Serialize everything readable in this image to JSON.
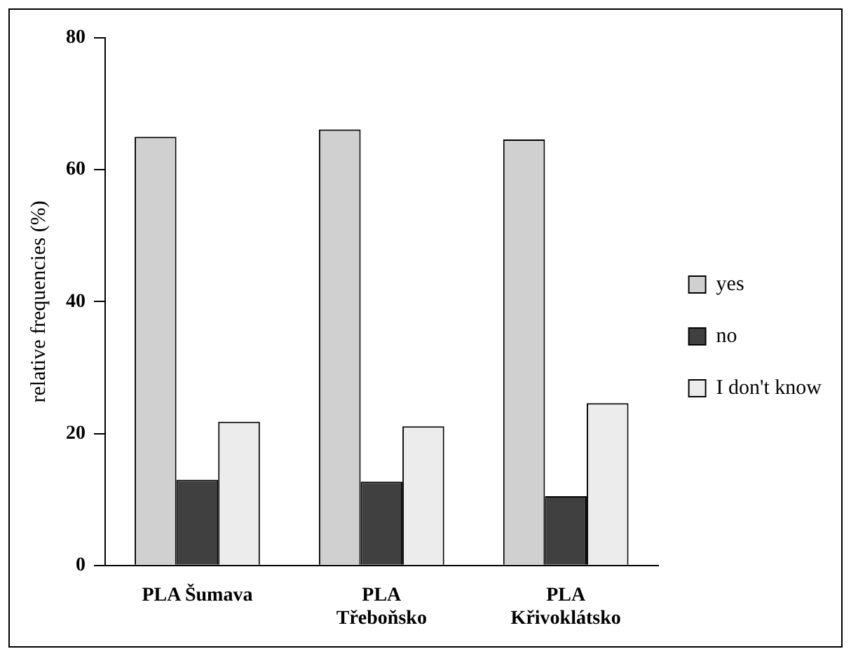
{
  "chart_data": {
    "type": "bar",
    "ylabel": "relative frequencies (%)",
    "categories": [
      "PLA Šumava",
      "PLA Třeboňsko",
      "PLA Křivoklátsko"
    ],
    "series": [
      {
        "name": "yes",
        "color": "#d0d0d0",
        "values": [
          65.0,
          66.1,
          64.6
        ]
      },
      {
        "name": "no",
        "color": "#404040",
        "values": [
          13.0,
          12.7,
          10.5
        ]
      },
      {
        "name": "I don't know",
        "color": "#ececec",
        "values": [
          21.8,
          21.1,
          24.6
        ]
      }
    ],
    "ylim": [
      0,
      80
    ],
    "yticks": [
      0,
      20,
      40,
      60,
      80
    ],
    "grid": false,
    "legend": "right"
  }
}
